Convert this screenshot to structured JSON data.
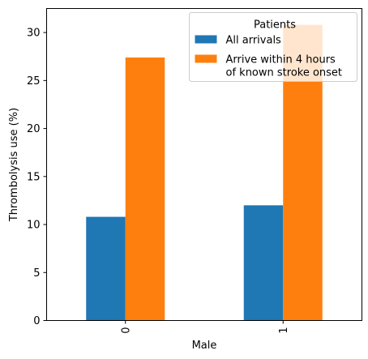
{
  "chart_data": {
    "type": "bar",
    "xlabel": "Male",
    "ylabel": "Thrombolysis use (%)",
    "categories": [
      "0",
      "1"
    ],
    "ylim": [
      0,
      32.5
    ],
    "yticks": [
      0,
      5,
      10,
      15,
      20,
      25,
      30
    ],
    "grid": false,
    "legend": {
      "title": "Patients",
      "placement": "top-right"
    },
    "series": [
      {
        "name": "All arrivals",
        "color": "#1f77b4",
        "values": [
          10.8,
          12.0
        ]
      },
      {
        "name": "Arrive within 4 hours\nof known stroke onset",
        "color": "#ff7f0e",
        "values": [
          27.4,
          30.8
        ]
      }
    ]
  }
}
